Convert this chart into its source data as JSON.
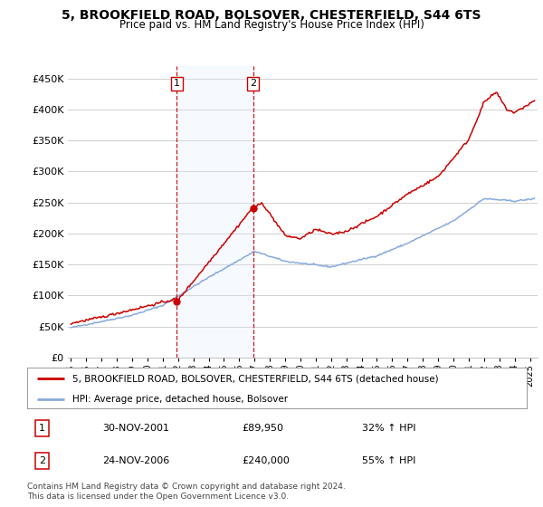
{
  "title": "5, BROOKFIELD ROAD, BOLSOVER, CHESTERFIELD, S44 6TS",
  "subtitle": "Price paid vs. HM Land Registry's House Price Index (HPI)",
  "ylabel_ticks": [
    "£0",
    "£50K",
    "£100K",
    "£150K",
    "£200K",
    "£250K",
    "£300K",
    "£350K",
    "£400K",
    "£450K"
  ],
  "ytick_values": [
    0,
    50000,
    100000,
    150000,
    200000,
    250000,
    300000,
    350000,
    400000,
    450000
  ],
  "ylim": [
    0,
    470000
  ],
  "xlim_start": 1994.8,
  "xlim_end": 2025.5,
  "background_color": "#ffffff",
  "plot_bg_color": "#ffffff",
  "grid_color": "#d0d0d0",
  "sale1": {
    "year": 2001.92,
    "price": 89950,
    "label": "1",
    "date": "30-NOV-2001",
    "pct": "32%"
  },
  "sale2": {
    "year": 2006.9,
    "price": 240000,
    "label": "2",
    "date": "24-NOV-2006",
    "pct": "55%"
  },
  "vline_color": "#cc0000",
  "shade_color": "#ddeeff",
  "hpi_line_color": "#88aadd",
  "price_line_color": "#cc0000",
  "legend_label_price": "5, BROOKFIELD ROAD, BOLSOVER, CHESTERFIELD, S44 6TS (detached house)",
  "legend_label_hpi": "HPI: Average price, detached house, Bolsover",
  "table_row1": [
    "1",
    "30-NOV-2001",
    "£89,950",
    "32% ↑ HPI"
  ],
  "table_row2": [
    "2",
    "24-NOV-2006",
    "£240,000",
    "55% ↑ HPI"
  ],
  "footer": "Contains HM Land Registry data © Crown copyright and database right 2024.\nThis data is licensed under the Open Government Licence v3.0.",
  "xtick_years": [
    1995,
    1996,
    1997,
    1998,
    1999,
    2000,
    2001,
    2002,
    2003,
    2004,
    2005,
    2006,
    2007,
    2008,
    2009,
    2010,
    2011,
    2012,
    2013,
    2014,
    2015,
    2016,
    2017,
    2018,
    2019,
    2020,
    2021,
    2022,
    2023,
    2024,
    2025
  ]
}
